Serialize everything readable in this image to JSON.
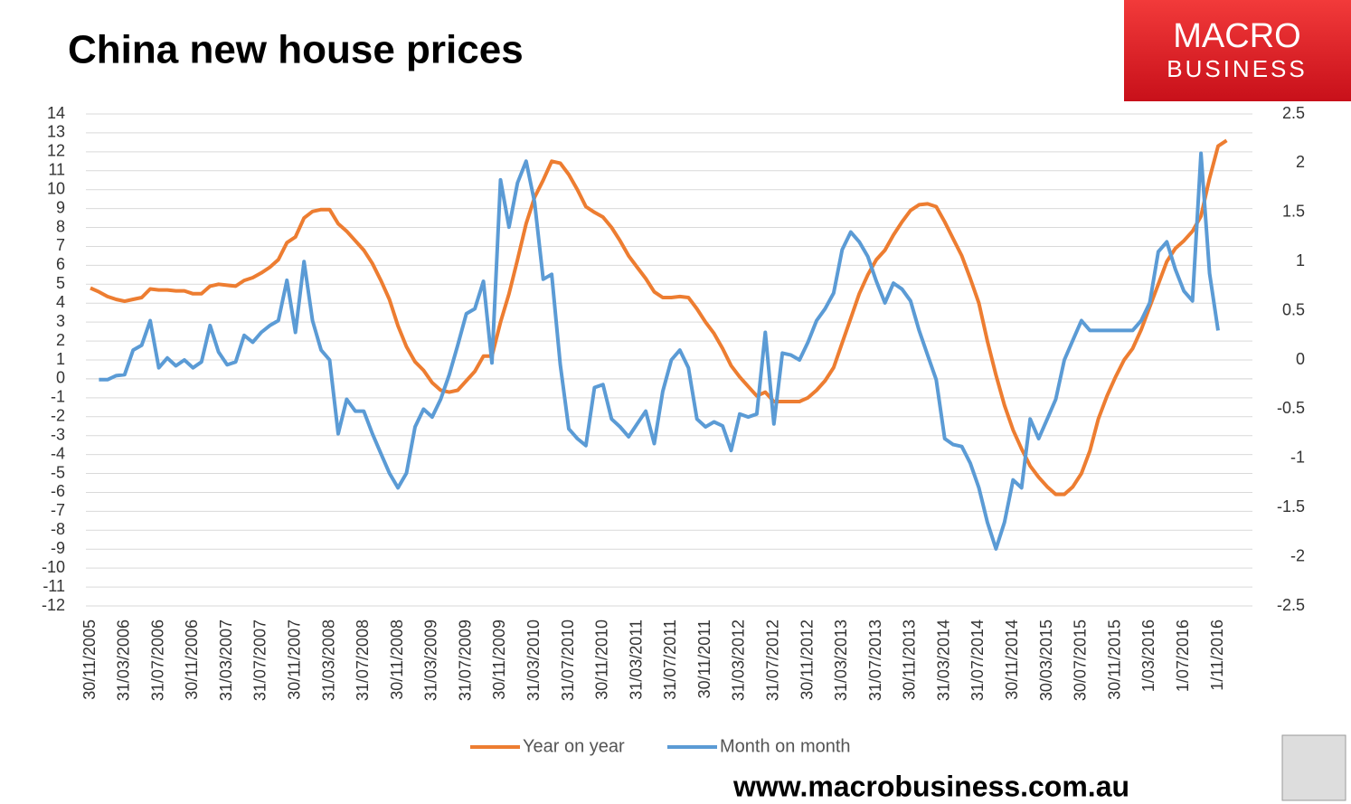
{
  "chart_data": {
    "type": "line",
    "title": "China new house prices",
    "logo_top": "MACRO",
    "logo_bottom": "BUSINESS",
    "source_url": "www.macrobusiness.com.au",
    "categories": [
      "30/11/2005",
      null,
      null,
      null,
      "31/03/2006",
      null,
      null,
      null,
      "31/07/2006",
      null,
      null,
      null,
      "30/11/2006",
      null,
      null,
      null,
      "31/03/2007",
      null,
      null,
      null,
      "31/07/2007",
      null,
      null,
      null,
      "30/11/2007",
      null,
      null,
      null,
      "31/03/2008",
      null,
      null,
      null,
      "31/07/2008",
      null,
      null,
      null,
      "30/11/2008",
      null,
      null,
      null,
      "31/03/2009",
      null,
      null,
      null,
      "31/07/2009",
      null,
      null,
      null,
      "30/11/2009",
      null,
      null,
      null,
      "31/03/2010",
      null,
      null,
      null,
      "31/07/2010",
      null,
      null,
      null,
      "30/11/2010",
      null,
      null,
      null,
      "31/03/2011",
      null,
      null,
      null,
      "31/07/2011",
      null,
      null,
      null,
      "30/11/2011",
      null,
      null,
      null,
      "31/03/2012",
      null,
      null,
      null,
      "31/07/2012",
      null,
      null,
      null,
      "30/11/2012",
      null,
      null,
      null,
      "31/03/2013",
      null,
      null,
      null,
      "31/07/2013",
      null,
      null,
      null,
      "30/11/2013",
      null,
      null,
      null,
      "31/03/2014",
      null,
      null,
      null,
      "31/07/2014",
      null,
      null,
      null,
      "30/11/2014",
      null,
      null,
      null,
      "30/03/2015",
      null,
      null,
      null,
      "30/07/2015",
      null,
      null,
      null,
      "30/11/2015",
      null,
      null,
      null,
      "1/03/2016",
      null,
      null,
      null,
      "1/07/2016",
      null,
      null,
      null,
      "1/11/2016",
      null
    ],
    "series": [
      {
        "name": "Year on year",
        "color": "#ed7d31",
        "values": [
          4.8,
          4.6,
          4.35,
          4.2,
          4.1,
          4.2,
          4.3,
          4.75,
          4.7,
          4.7,
          4.65,
          4.65,
          4.5,
          4.5,
          4.9,
          5.0,
          4.95,
          4.9,
          5.2,
          5.35,
          5.6,
          5.9,
          6.3,
          7.2,
          7.5,
          8.5,
          8.85,
          8.95,
          8.95,
          8.2,
          7.8,
          7.3,
          6.8,
          6.1,
          5.2,
          4.2,
          2.8,
          1.7,
          0.9,
          0.45,
          -0.2,
          -0.6,
          -0.7,
          -0.6,
          -0.1,
          0.4,
          1.2,
          1.2,
          3.0,
          4.5,
          6.3,
          8.2,
          9.6,
          10.5,
          11.5,
          11.4,
          10.8,
          10.0,
          9.1,
          8.8,
          8.55,
          8.0,
          7.3,
          6.5,
          5.9,
          5.3,
          4.6,
          4.3,
          4.3,
          4.35,
          4.3,
          3.7,
          3.0,
          2.4,
          1.6,
          0.7,
          0.1,
          -0.4,
          -0.9,
          -0.7,
          -1.2,
          -1.2,
          -1.2,
          -1.2,
          -1.0,
          -0.6,
          -0.1,
          0.6,
          1.9,
          3.2,
          4.5,
          5.5,
          6.3,
          6.8,
          7.6,
          8.3,
          8.9,
          9.2,
          9.25,
          9.1,
          8.3,
          7.4,
          6.5,
          5.3,
          4.0,
          2.0,
          0.2,
          -1.4,
          -2.7,
          -3.7,
          -4.6,
          -5.2,
          -5.7,
          -6.1,
          -6.1,
          -5.7,
          -5.0,
          -3.8,
          -2.1,
          -0.9,
          0.1,
          1.0,
          1.6,
          2.6,
          3.8,
          5.0,
          6.2,
          6.9,
          7.3,
          7.8,
          8.6,
          10.6,
          12.3,
          12.6
        ]
      },
      {
        "name": "Month on month",
        "color": "#5b9bd5",
        "axis": "y2",
        "values": [
          null,
          -0.2,
          -0.2,
          -0.16,
          -0.15,
          0.1,
          0.15,
          0.4,
          -0.08,
          0.02,
          -0.06,
          0,
          -0.08,
          -0.02,
          0.35,
          0.08,
          -0.05,
          -0.02,
          0.25,
          0.18,
          0.28,
          0.35,
          0.4,
          0.81,
          0.28,
          1.0,
          0.4,
          0.1,
          0,
          -0.75,
          -0.4,
          -0.52,
          -0.52,
          -0.75,
          -0.95,
          -1.15,
          -1.3,
          -1.15,
          -0.68,
          -0.5,
          -0.58,
          -0.4,
          -0.15,
          0.15,
          0.47,
          0.52,
          0.8,
          -0.03,
          1.83,
          1.35,
          1.8,
          2.02,
          1.6,
          0.82,
          0.87,
          -0.05,
          -0.7,
          -0.8,
          -0.87,
          -0.28,
          -0.25,
          -0.6,
          -0.68,
          -0.78,
          -0.65,
          -0.52,
          -0.85,
          -0.32,
          0,
          0.1,
          -0.08,
          -0.6,
          -0.68,
          -0.63,
          -0.67,
          -0.92,
          -0.55,
          -0.58,
          -0.55,
          0.28,
          -0.65,
          0.07,
          0.05,
          0,
          0.18,
          0.4,
          0.52,
          0.68,
          1.12,
          1.3,
          1.2,
          1.05,
          0.8,
          0.58,
          0.78,
          0.72,
          0.6,
          0.3,
          0.05,
          -0.2,
          -0.8,
          -0.86,
          -0.88,
          -1.05,
          -1.3,
          -1.65,
          -1.92,
          -1.65,
          -1.22,
          -1.3,
          -0.6,
          -0.8,
          -0.6,
          -0.4,
          0,
          0.2,
          0.4,
          0.3,
          0.3,
          0.3,
          0.3,
          0.3,
          0.3,
          0.4,
          0.58,
          1.1,
          1.2,
          0.92,
          0.7,
          0.6,
          2.1,
          0.88,
          0.3,
          null
        ]
      }
    ],
    "ylim": [
      -12,
      14
    ],
    "yticks": [
      14,
      13,
      12,
      11,
      10,
      9,
      8,
      7,
      6,
      5,
      4,
      3,
      2,
      1,
      0,
      -1,
      -2,
      -3,
      -4,
      -5,
      -6,
      -7,
      -8,
      -9,
      -10,
      -11,
      -12
    ],
    "y2lim": [
      -2.5,
      2.5
    ],
    "y2ticks": [
      2.5,
      2,
      1.5,
      1,
      0.5,
      0,
      -0.5,
      -1,
      -1.5,
      -2,
      -2.5
    ],
    "grid": true,
    "legend": "bottom"
  }
}
